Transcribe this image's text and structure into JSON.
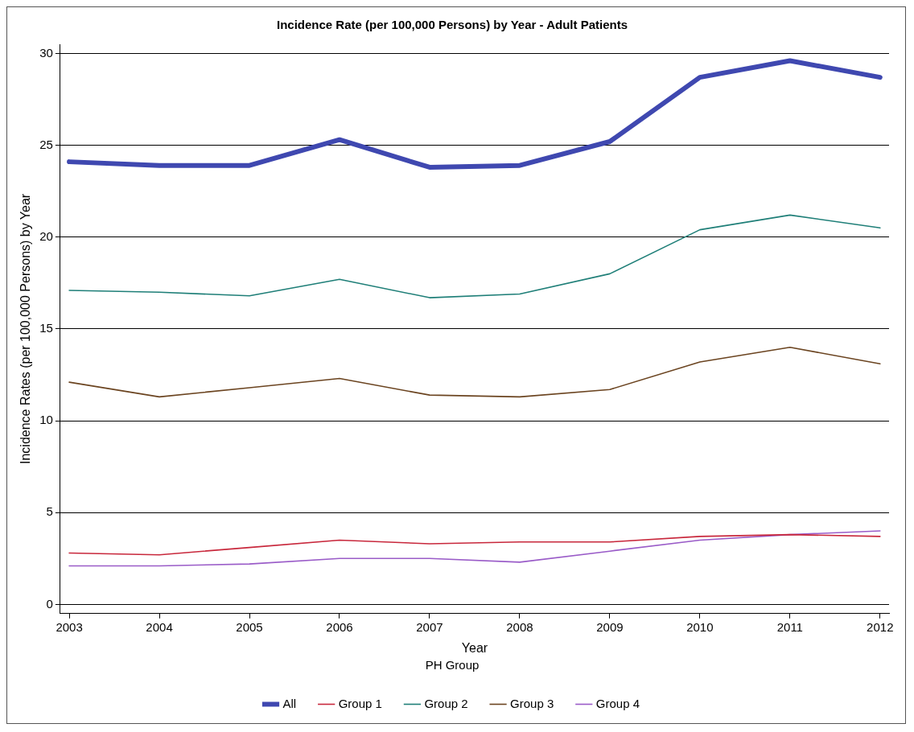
{
  "chart_data": {
    "type": "line",
    "title": "Incidence Rate (per 100,000 Persons) by Year - Adult Patients",
    "xlabel": "Year",
    "ylabel": "Incidence Rates (per 100,000 Persons) by Year",
    "legend_title": "PH Group",
    "x": [
      2003,
      2004,
      2005,
      2006,
      2007,
      2008,
      2009,
      2010,
      2011,
      2012
    ],
    "series": [
      {
        "name": "All",
        "color": "#3f48b0",
        "values": [
          24.1,
          23.9,
          23.9,
          25.3,
          23.8,
          23.9,
          25.2,
          28.7,
          29.6,
          28.7
        ]
      },
      {
        "name": "Group 1",
        "color": "#c8283c",
        "values": [
          2.8,
          2.7,
          3.1,
          3.5,
          3.3,
          3.4,
          3.4,
          3.7,
          3.8,
          3.7
        ]
      },
      {
        "name": "Group 2",
        "color": "#1f7f78",
        "values": [
          17.1,
          17.0,
          16.8,
          17.7,
          16.7,
          16.9,
          18.0,
          20.4,
          21.2,
          20.5
        ]
      },
      {
        "name": "Group 3",
        "color": "#6b4420",
        "values": [
          12.1,
          11.3,
          11.8,
          12.3,
          11.4,
          11.3,
          11.7,
          13.2,
          14.0,
          13.1
        ]
      },
      {
        "name": "Group 4",
        "color": "#9a5cc8",
        "values": [
          2.1,
          2.1,
          2.2,
          2.5,
          2.5,
          2.3,
          2.9,
          3.5,
          3.8,
          4.0
        ]
      }
    ],
    "xlim": [
      2002.9,
      2012.1
    ],
    "xticks": [
      2003,
      2004,
      2005,
      2006,
      2007,
      2008,
      2009,
      2010,
      2011,
      2012
    ],
    "ylim": [
      -0.5,
      30.5
    ],
    "yticks": [
      0,
      5,
      10,
      15,
      20,
      25,
      30
    ],
    "grid": "y",
    "legend": "bottom",
    "marker": "none",
    "line_style": "solid"
  }
}
